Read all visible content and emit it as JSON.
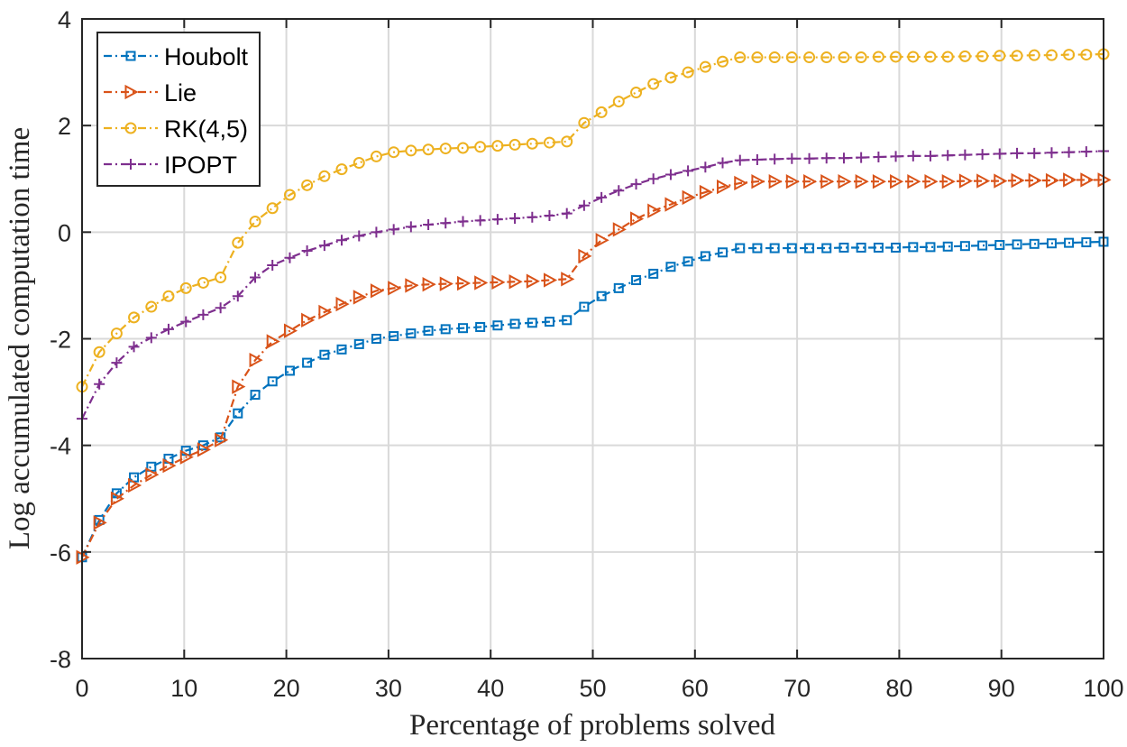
{
  "chart_data": {
    "type": "line",
    "title": "",
    "xlabel": "Percentage of problems solved",
    "ylabel": "Log accumulated computation time",
    "xlim": [
      0,
      100
    ],
    "ylim": [
      -8,
      4
    ],
    "xticks": [
      0,
      10,
      20,
      30,
      40,
      50,
      60,
      70,
      80,
      90,
      100
    ],
    "yticks": [
      -8,
      -6,
      -4,
      -2,
      0,
      2,
      4
    ],
    "grid": true,
    "legend_position": "top-left",
    "x": [
      0,
      1.69,
      3.39,
      5.08,
      6.78,
      8.47,
      10.17,
      11.86,
      13.56,
      15.25,
      16.95,
      18.64,
      20.34,
      22.03,
      23.73,
      25.42,
      27.12,
      28.81,
      30.51,
      32.2,
      33.9,
      35.59,
      37.29,
      38.98,
      40.68,
      42.37,
      44.07,
      45.76,
      47.46,
      49.15,
      50.85,
      52.54,
      54.24,
      55.93,
      57.63,
      59.32,
      61.02,
      62.71,
      64.41,
      66.1,
      67.8,
      69.49,
      71.19,
      72.88,
      74.58,
      76.27,
      77.97,
      79.66,
      81.36,
      83.05,
      84.75,
      86.44,
      88.14,
      89.83,
      91.53,
      93.22,
      94.92,
      96.61,
      98.31,
      100
    ],
    "series": [
      {
        "name": "Houbolt",
        "color": "#0072BD",
        "marker": "square",
        "values": [
          -6.1,
          -5.4,
          -4.9,
          -4.6,
          -4.4,
          -4.25,
          -4.1,
          -4.0,
          -3.85,
          -3.4,
          -3.05,
          -2.8,
          -2.6,
          -2.45,
          -2.3,
          -2.2,
          -2.1,
          -2.0,
          -1.95,
          -1.9,
          -1.85,
          -1.82,
          -1.8,
          -1.78,
          -1.75,
          -1.72,
          -1.7,
          -1.68,
          -1.65,
          -1.4,
          -1.2,
          -1.05,
          -0.9,
          -0.78,
          -0.65,
          -0.55,
          -0.45,
          -0.38,
          -0.3,
          -0.3,
          -0.3,
          -0.3,
          -0.3,
          -0.3,
          -0.29,
          -0.29,
          -0.29,
          -0.29,
          -0.28,
          -0.28,
          -0.27,
          -0.26,
          -0.25,
          -0.24,
          -0.23,
          -0.22,
          -0.21,
          -0.2,
          -0.19,
          -0.18
        ]
      },
      {
        "name": "Lie",
        "color": "#D95319",
        "marker": "triangle-right",
        "values": [
          -6.1,
          -5.45,
          -5.0,
          -4.75,
          -4.55,
          -4.38,
          -4.22,
          -4.08,
          -3.9,
          -2.9,
          -2.4,
          -2.05,
          -1.85,
          -1.65,
          -1.5,
          -1.35,
          -1.22,
          -1.1,
          -1.05,
          -1.0,
          -0.98,
          -0.97,
          -0.96,
          -0.95,
          -0.94,
          -0.93,
          -0.92,
          -0.9,
          -0.88,
          -0.45,
          -0.15,
          0.05,
          0.25,
          0.4,
          0.52,
          0.65,
          0.75,
          0.85,
          0.92,
          0.95,
          0.95,
          0.95,
          0.95,
          0.95,
          0.95,
          0.95,
          0.95,
          0.95,
          0.95,
          0.95,
          0.95,
          0.96,
          0.96,
          0.96,
          0.97,
          0.97,
          0.97,
          0.98,
          0.98,
          0.98
        ]
      },
      {
        "name": "RK(4,5)",
        "color": "#EDB120",
        "marker": "circle",
        "values": [
          -2.9,
          -2.25,
          -1.9,
          -1.6,
          -1.4,
          -1.2,
          -1.05,
          -0.95,
          -0.85,
          -0.2,
          0.2,
          0.45,
          0.7,
          0.88,
          1.05,
          1.18,
          1.3,
          1.42,
          1.5,
          1.53,
          1.55,
          1.57,
          1.58,
          1.6,
          1.62,
          1.64,
          1.66,
          1.68,
          1.7,
          2.05,
          2.25,
          2.45,
          2.62,
          2.78,
          2.9,
          3.0,
          3.1,
          3.2,
          3.28,
          3.28,
          3.28,
          3.28,
          3.28,
          3.28,
          3.28,
          3.28,
          3.29,
          3.29,
          3.29,
          3.29,
          3.29,
          3.3,
          3.3,
          3.31,
          3.31,
          3.32,
          3.32,
          3.33,
          3.33,
          3.34
        ]
      },
      {
        "name": "IPOPT",
        "color": "#7E2F8E",
        "marker": "plus",
        "values": [
          -3.5,
          -2.85,
          -2.45,
          -2.15,
          -1.98,
          -1.82,
          -1.68,
          -1.55,
          -1.42,
          -1.2,
          -0.85,
          -0.62,
          -0.48,
          -0.35,
          -0.25,
          -0.15,
          -0.07,
          0.0,
          0.05,
          0.1,
          0.14,
          0.17,
          0.2,
          0.22,
          0.24,
          0.26,
          0.28,
          0.31,
          0.35,
          0.5,
          0.65,
          0.78,
          0.9,
          1.0,
          1.08,
          1.15,
          1.22,
          1.3,
          1.35,
          1.36,
          1.37,
          1.38,
          1.38,
          1.39,
          1.39,
          1.4,
          1.41,
          1.42,
          1.43,
          1.43,
          1.44,
          1.45,
          1.46,
          1.47,
          1.48,
          1.48,
          1.49,
          1.5,
          1.51,
          1.52
        ]
      }
    ]
  }
}
